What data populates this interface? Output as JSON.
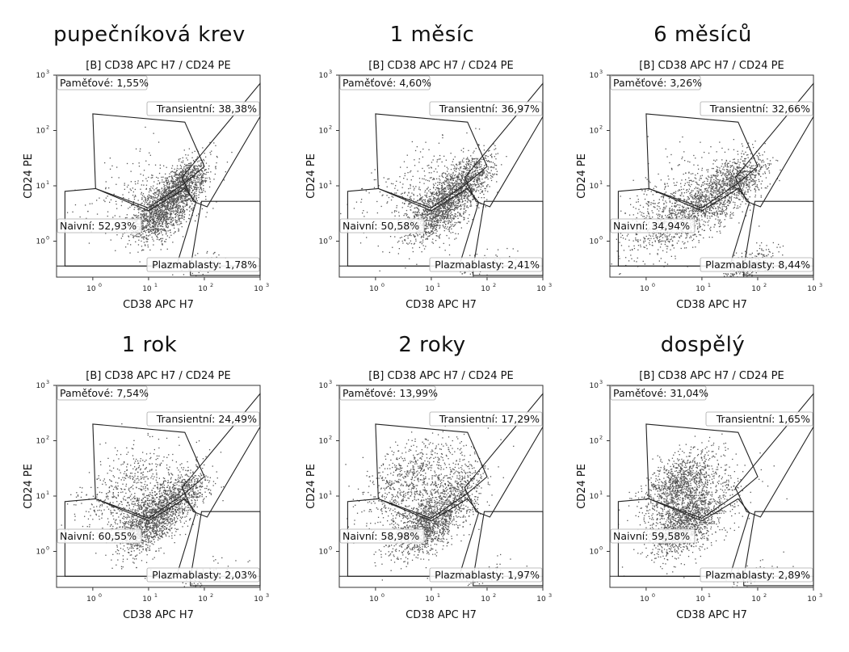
{
  "chart_data": [
    {
      "type": "scatter",
      "panel_title": "pupečníková krev",
      "title": "[B] CD38 APC H7 / CD24 PE",
      "xlabel": "CD38 APC H7",
      "ylabel": "CD24 PE",
      "x_scale": "log",
      "y_scale": "log",
      "x_ticks": [
        "10",
        "10",
        "10",
        "10"
      ],
      "x_tick_exps": [
        "0",
        "1",
        "2",
        "3"
      ],
      "y_ticks": [
        "10",
        "10",
        "10",
        "10"
      ],
      "y_tick_exps": [
        "0",
        "1",
        "2",
        "3"
      ],
      "gates": [
        {
          "name": "Paměťové",
          "label": "Paměťové: 1,55%",
          "percent": 1.55
        },
        {
          "name": "Transientní",
          "label": "Transientní: 38,38%",
          "percent": 38.38
        },
        {
          "name": "Naivní",
          "label": "Naivní: 52,93%",
          "percent": 52.93
        },
        {
          "name": "Plazmablasty",
          "label": "Plazmablasty: 1,78%",
          "percent": 1.78
        }
      ]
    },
    {
      "type": "scatter",
      "panel_title": "1 měsíc",
      "title": "[B] CD38 APC H7 / CD24 PE",
      "xlabel": "CD38 APC H7",
      "ylabel": "CD24 PE",
      "x_scale": "log",
      "y_scale": "log",
      "x_ticks": [
        "10",
        "10",
        "10",
        "10"
      ],
      "x_tick_exps": [
        "0",
        "1",
        "2",
        "3"
      ],
      "y_ticks": [
        "10",
        "10",
        "10",
        "10"
      ],
      "y_tick_exps": [
        "0",
        "1",
        "2",
        "3"
      ],
      "gates": [
        {
          "name": "Paměťové",
          "label": "Paměťové: 4,60%",
          "percent": 4.6
        },
        {
          "name": "Transientní",
          "label": "Transientní: 36,97%",
          "percent": 36.97
        },
        {
          "name": "Naivní",
          "label": "Naivní: 50,58%",
          "percent": 50.58
        },
        {
          "name": "Plazmablasty",
          "label": "Plazmablasty: 2,41%",
          "percent": 2.41
        }
      ]
    },
    {
      "type": "scatter",
      "panel_title": "6 měsíců",
      "title": "[B] CD38 APC H7 / CD24 PE",
      "xlabel": "CD38 APC H7",
      "ylabel": "CD24 PE",
      "x_scale": "log",
      "y_scale": "log",
      "x_ticks": [
        "10",
        "10",
        "10",
        "10"
      ],
      "x_tick_exps": [
        "0",
        "1",
        "2",
        "3"
      ],
      "y_ticks": [
        "10",
        "10",
        "10",
        "10"
      ],
      "y_tick_exps": [
        "0",
        "1",
        "2",
        "3"
      ],
      "gates": [
        {
          "name": "Paměťové",
          "label": "Paměťové: 3,26%",
          "percent": 3.26
        },
        {
          "name": "Transientní",
          "label": "Transientní: 32,66%",
          "percent": 32.66
        },
        {
          "name": "Naivní",
          "label": "Naivní: 34,94%",
          "percent": 34.94
        },
        {
          "name": "Plazmablasty",
          "label": "Plazmablasty: 8,44%",
          "percent": 8.44
        }
      ]
    },
    {
      "type": "scatter",
      "panel_title": "1 rok",
      "title": "[B] CD38 APC H7 / CD24 PE",
      "xlabel": "CD38 APC H7",
      "ylabel": "CD24 PE",
      "x_scale": "log",
      "y_scale": "log",
      "x_ticks": [
        "10",
        "10",
        "10",
        "10"
      ],
      "x_tick_exps": [
        "0",
        "1",
        "2",
        "3"
      ],
      "y_ticks": [
        "10",
        "10",
        "10",
        "10"
      ],
      "y_tick_exps": [
        "0",
        "1",
        "2",
        "3"
      ],
      "gates": [
        {
          "name": "Paměťové",
          "label": "Paměťové: 7,54%",
          "percent": 7.54
        },
        {
          "name": "Transientní",
          "label": "Transientní: 24,49%",
          "percent": 24.49
        },
        {
          "name": "Naivní",
          "label": "Naivní: 60,55%",
          "percent": 60.55
        },
        {
          "name": "Plazmablasty",
          "label": "Plazmablasty: 2,03%",
          "percent": 2.03
        }
      ]
    },
    {
      "type": "scatter",
      "panel_title": "2 roky",
      "title": "[B] CD38 APC H7 / CD24 PE",
      "xlabel": "CD38 APC H7",
      "ylabel": "CD24 PE",
      "x_scale": "log",
      "y_scale": "log",
      "x_ticks": [
        "10",
        "10",
        "10",
        "10"
      ],
      "x_tick_exps": [
        "0",
        "1",
        "2",
        "3"
      ],
      "y_ticks": [
        "10",
        "10",
        "10",
        "10"
      ],
      "y_tick_exps": [
        "0",
        "1",
        "2",
        "3"
      ],
      "gates": [
        {
          "name": "Paměťové",
          "label": "Paměťové: 13,99%",
          "percent": 13.99
        },
        {
          "name": "Transientní",
          "label": "Transientní: 17,29%",
          "percent": 17.29
        },
        {
          "name": "Naivní",
          "label": "Naivní: 58,98%",
          "percent": 58.98
        },
        {
          "name": "Plazmablasty",
          "label": "Plazmablasty: 1,97%",
          "percent": 1.97
        }
      ]
    },
    {
      "type": "scatter",
      "panel_title": "dospělý",
      "title": "[B] CD38 APC H7 / CD24 PE",
      "xlabel": "CD38 APC H7",
      "ylabel": "CD24 PE",
      "x_scale": "log",
      "y_scale": "log",
      "x_ticks": [
        "10",
        "10",
        "10",
        "10"
      ],
      "x_tick_exps": [
        "0",
        "1",
        "2",
        "3"
      ],
      "y_ticks": [
        "10",
        "10",
        "10",
        "10"
      ],
      "y_tick_exps": [
        "0",
        "1",
        "2",
        "3"
      ],
      "gates": [
        {
          "name": "Paměťové",
          "label": "Paměťové: 31,04%",
          "percent": 31.04
        },
        {
          "name": "Transientní",
          "label": "Transientní: 1,65%",
          "percent": 1.65
        },
        {
          "name": "Naivní",
          "label": "Naivní: 59,58%",
          "percent": 59.58
        },
        {
          "name": "Plazmablasty",
          "label": "Plazmablasty: 2,89%",
          "percent": 2.89
        }
      ]
    }
  ]
}
